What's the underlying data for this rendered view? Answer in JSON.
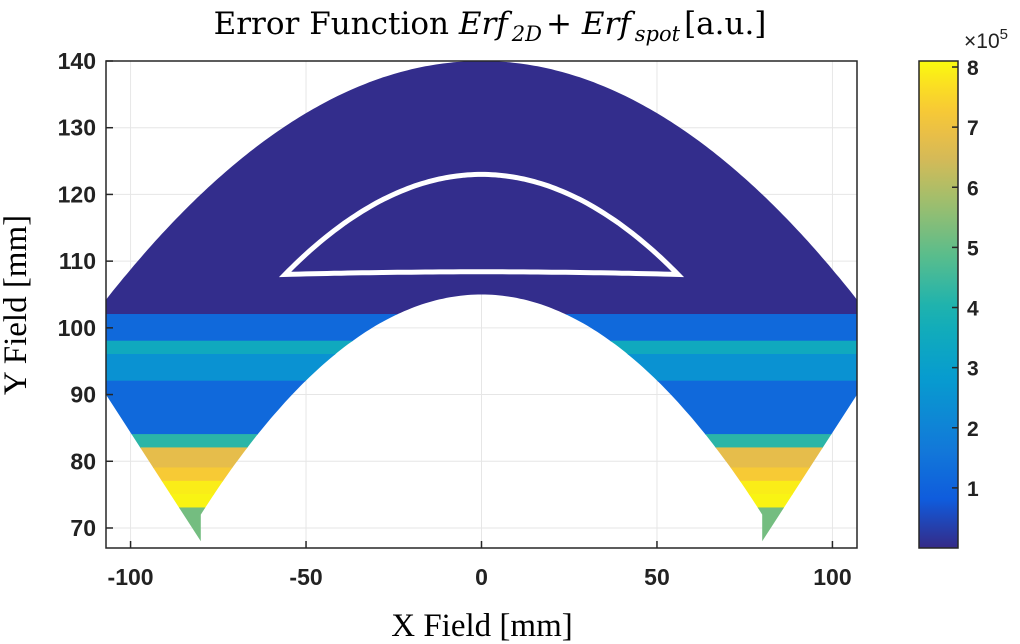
{
  "chart_data": {
    "type": "heatmap",
    "title": {
      "prefix": "Error Function ",
      "term1": "Erf",
      "term1_sub": "2D",
      "plus": " + ",
      "term2": "Erf",
      "term2_sub": "spot",
      "suffix": " [a.u.]"
    },
    "xlabel": "X Field [mm]",
    "ylabel": "Y Field [mm]",
    "xlim": [
      -107,
      107
    ],
    "ylim": [
      67,
      140
    ],
    "xticks": [
      -100,
      -50,
      0,
      50,
      100
    ],
    "yticks": [
      70,
      80,
      90,
      100,
      110,
      120,
      130,
      140
    ],
    "grid": true,
    "field_shape": {
      "outer_boundary": "y = 140 - x^2/320 (|x| <= 107)",
      "inner_boundary": "y = 105 - x^2/194 (|x| <= 80)",
      "peak_outer": 140,
      "peak_inner": 105,
      "bottom_tips": [
        [
          -80,
          68
        ],
        [
          80,
          68
        ]
      ],
      "side_vertices": [
        [
          -107,
          90
        ],
        [
          107,
          90
        ]
      ]
    },
    "white_contour": {
      "top_y": 123,
      "base_y": 108,
      "x_extent": [
        -56,
        56
      ]
    },
    "regions": [
      {
        "y_range": [
          102,
          140
        ],
        "value": 0.05,
        "note": "upper arc and center"
      },
      {
        "y_range": [
          98,
          102
        ],
        "value": 1.2
      },
      {
        "y_range": [
          96,
          98
        ],
        "value": 3.5
      },
      {
        "y_range": [
          92,
          96
        ],
        "value": 2.5
      },
      {
        "y_range": [
          84,
          92
        ],
        "value": 1.2
      },
      {
        "y_range": [
          82,
          84
        ],
        "value": 4.2
      },
      {
        "y_range": [
          79,
          82
        ],
        "value": 6.8
      },
      {
        "y_range": [
          77,
          79
        ],
        "value": 7.3
      },
      {
        "y_range": [
          75,
          77
        ],
        "value": 7.9
      },
      {
        "y_range": [
          73,
          75
        ],
        "value": 8.0
      },
      {
        "y_range": [
          68,
          73
        ],
        "value": 5.2
      }
    ],
    "colorbar": {
      "multiplier": "×10",
      "exponent": "5",
      "ticks": [
        1,
        2,
        3,
        4,
        5,
        6,
        7,
        8
      ],
      "range": [
        0,
        8.1
      ],
      "colormap": "parula"
    },
    "colors": {
      "background": "#ffffff",
      "frame": "#262626",
      "contour": "#ffffff"
    }
  }
}
